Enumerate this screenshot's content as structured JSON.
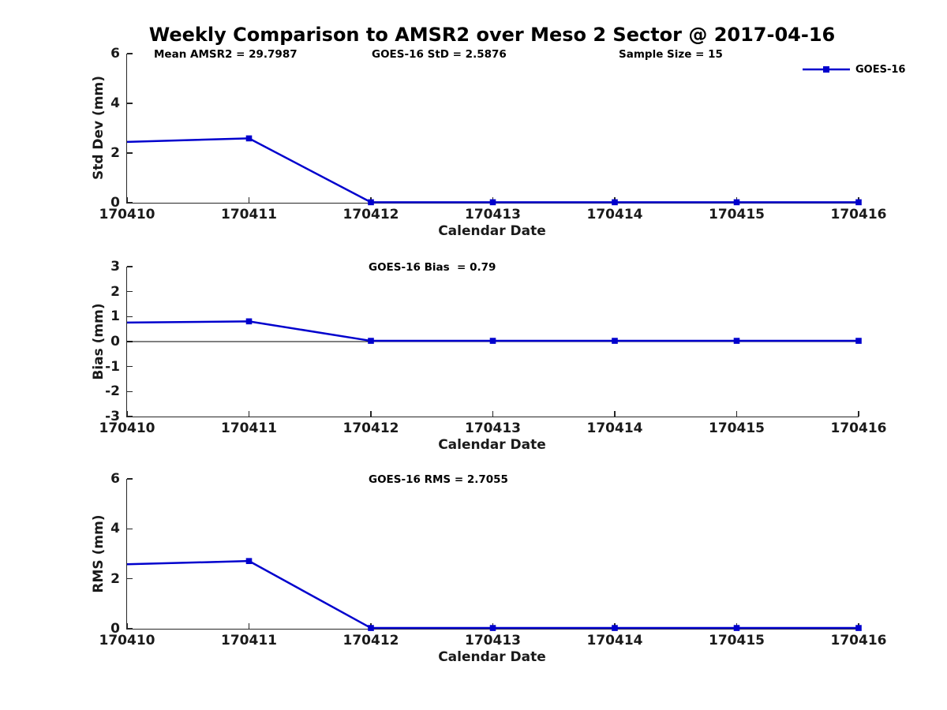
{
  "title": "Weekly Comparison to AMSR2 over Meso 2 Sector @ 2017-04-16",
  "legend": {
    "label": "GOES-16"
  },
  "colors": {
    "line": "#0000CD",
    "axis": "#262626",
    "text": "#1a1a1a",
    "zero_line": "#000000"
  },
  "chart_data": [
    {
      "type": "line",
      "panel": "std-dev",
      "annotations": [
        "Mean AMSR2 = 29.7987",
        "GOES-16 StD = 2.5876",
        "Sample Size = 15"
      ],
      "x": [
        "170410",
        "170411",
        "170412",
        "170413",
        "170414",
        "170415",
        "170416"
      ],
      "series": [
        {
          "name": "GOES-16",
          "values": [
            2.45,
            2.59,
            0.02,
            0.02,
            0.02,
            0.02,
            0.02
          ]
        }
      ],
      "xlabel": "Calendar Date",
      "ylabel": "Std Dev (mm)",
      "ylim": [
        0,
        6
      ],
      "yticks": [
        0,
        2,
        4,
        6
      ],
      "zero_line": false,
      "grid": false,
      "legend_position": "top-right"
    },
    {
      "type": "line",
      "panel": "bias",
      "annotations": [
        "GOES-16 Bias  = 0.79"
      ],
      "x": [
        "170410",
        "170411",
        "170412",
        "170413",
        "170414",
        "170415",
        "170416"
      ],
      "series": [
        {
          "name": "GOES-16",
          "values": [
            0.76,
            0.81,
            0.03,
            0.03,
            0.03,
            0.03,
            0.03
          ]
        }
      ],
      "xlabel": "Calendar Date",
      "ylabel": "Bias (mm)",
      "ylim": [
        -3,
        3
      ],
      "yticks": [
        3,
        2,
        1,
        0,
        -1,
        -2,
        -3
      ],
      "zero_line": true,
      "grid": false
    },
    {
      "type": "line",
      "panel": "rms",
      "annotations": [
        "GOES-16 RMS = 2.7055"
      ],
      "x": [
        "170410",
        "170411",
        "170412",
        "170413",
        "170414",
        "170415",
        "170416"
      ],
      "series": [
        {
          "name": "GOES-16",
          "values": [
            2.58,
            2.71,
            0.03,
            0.03,
            0.03,
            0.03,
            0.03
          ]
        }
      ],
      "xlabel": "Calendar Date",
      "ylabel": "RMS (mm)",
      "ylim": [
        0,
        6
      ],
      "yticks": [
        0,
        2,
        4,
        6
      ],
      "zero_line": false,
      "grid": false
    }
  ]
}
